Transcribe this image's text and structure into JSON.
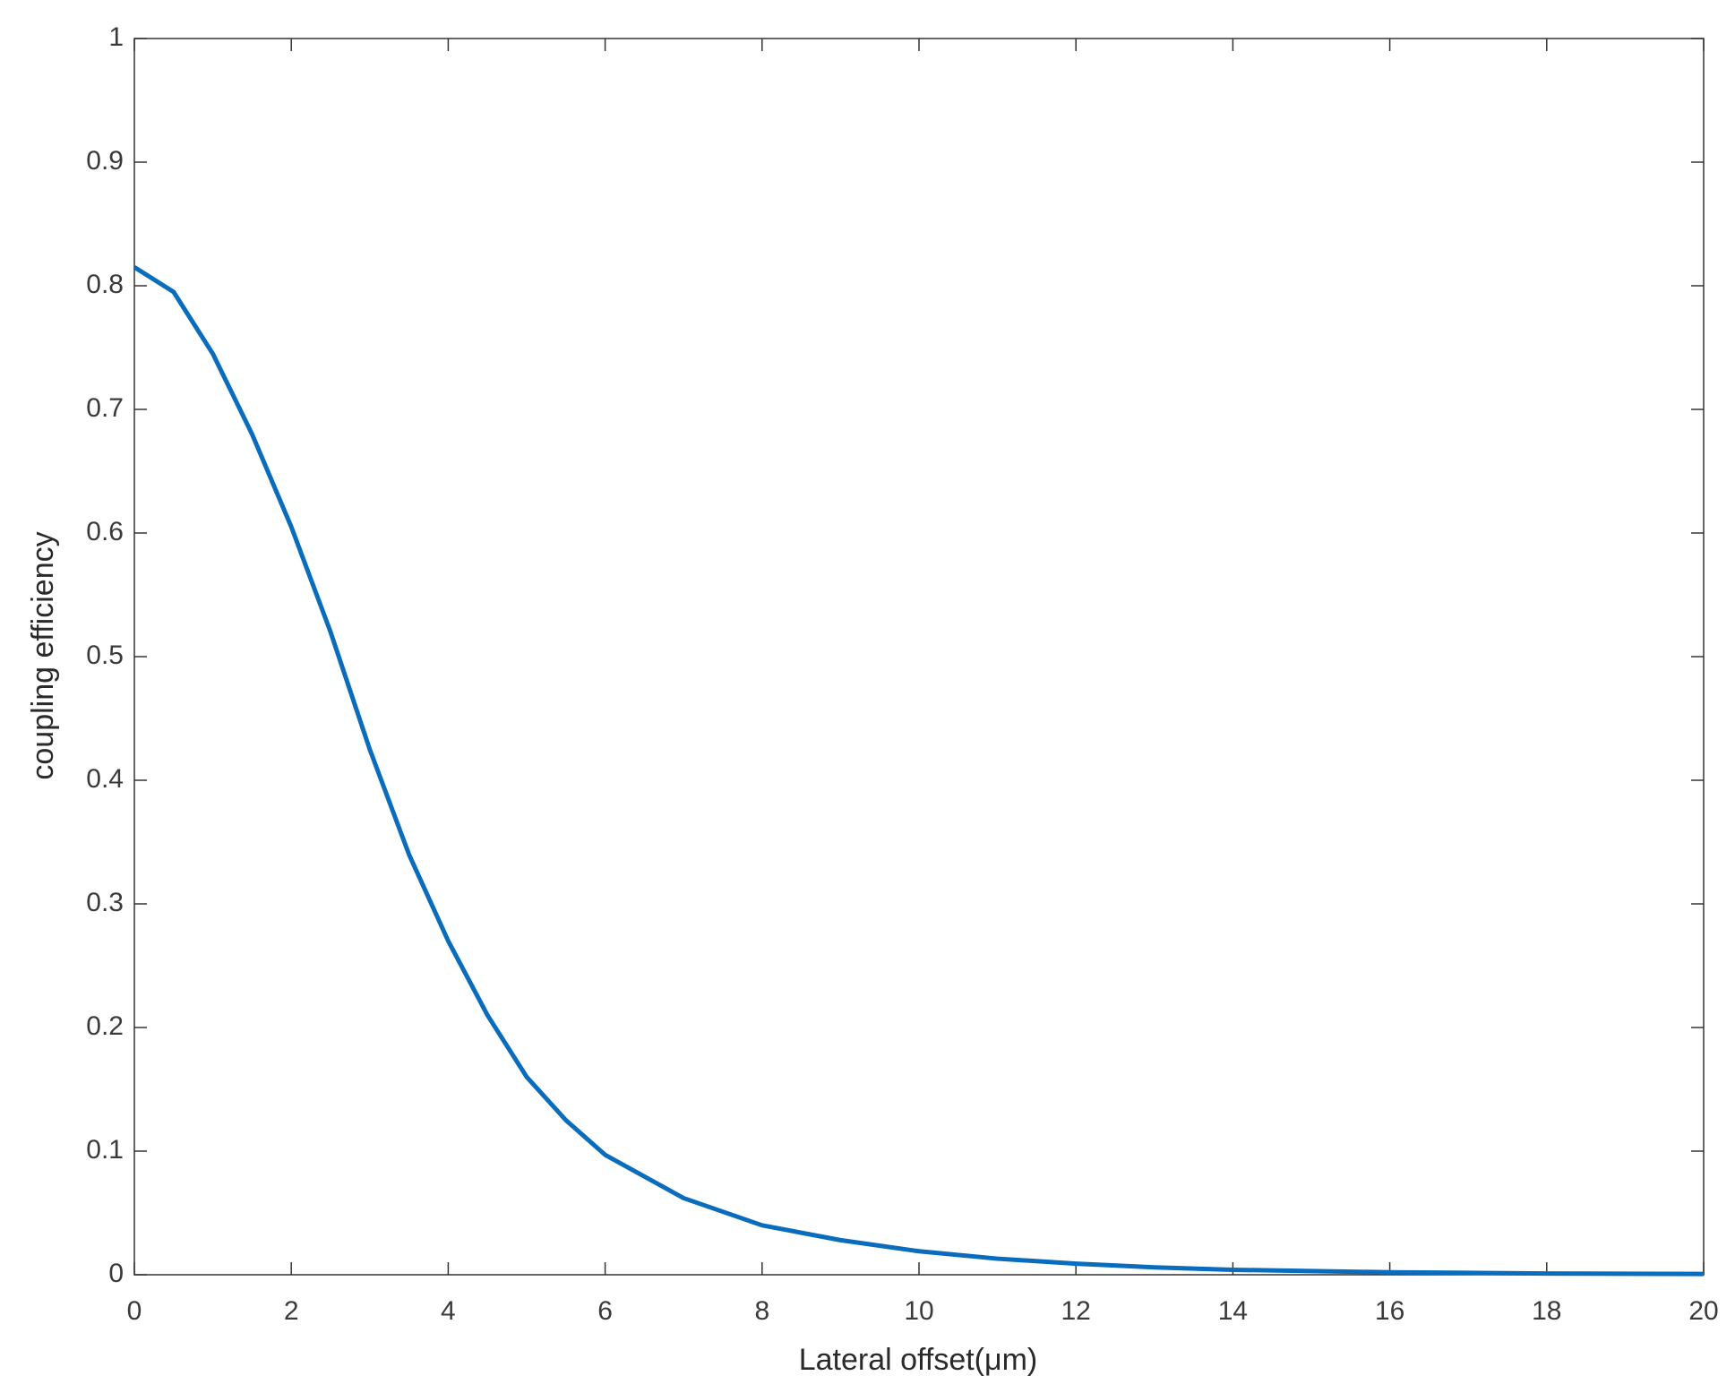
{
  "chart_data": {
    "type": "line",
    "xlabel": "Lateral offset(μm)",
    "ylabel": "coupling efficiency",
    "x": [
      0,
      0.5,
      1,
      1.5,
      2,
      2.5,
      3,
      3.5,
      4,
      4.5,
      5,
      5.5,
      6,
      7,
      8,
      9,
      10,
      11,
      12,
      13,
      14,
      15,
      16,
      17,
      18,
      19,
      20
    ],
    "series": [
      {
        "name": "coupling efficiency",
        "color": "#0a6cbd",
        "values": [
          0.815,
          0.795,
          0.745,
          0.68,
          0.605,
          0.52,
          0.425,
          0.34,
          0.27,
          0.21,
          0.16,
          0.125,
          0.097,
          0.062,
          0.04,
          0.028,
          0.019,
          0.013,
          0.009,
          0.006,
          0.004,
          0.003,
          0.002,
          0.0015,
          0.001,
          0.0008,
          0.0006
        ]
      }
    ],
    "xlim": [
      0,
      20
    ],
    "xticks": [
      0,
      2,
      4,
      6,
      8,
      10,
      12,
      14,
      16,
      18,
      20
    ],
    "ylim": [
      0,
      1
    ],
    "yticks": [
      0,
      0.1,
      0.2,
      0.3,
      0.4,
      0.5,
      0.6,
      0.7,
      0.8,
      0.9,
      1
    ],
    "grid": false
  }
}
